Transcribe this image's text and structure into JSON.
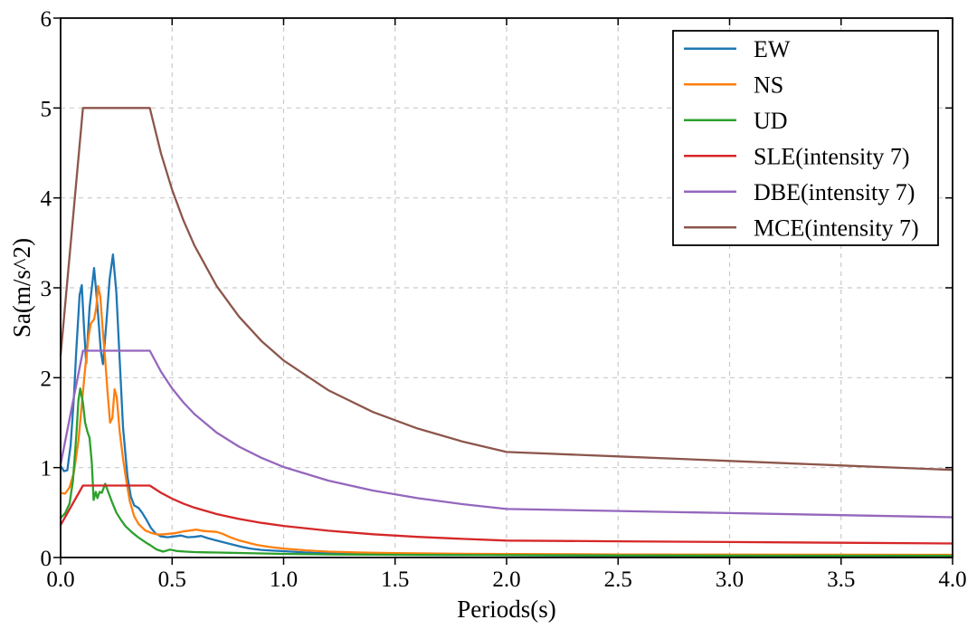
{
  "chart_data": {
    "type": "line",
    "title": "",
    "xlabel": "Periods(s)",
    "ylabel": "Sa(m/s^2)",
    "xlim": [
      0.0,
      4.0
    ],
    "ylim": [
      0,
      6
    ],
    "xticks": [
      0.0,
      0.5,
      1.0,
      1.5,
      2.0,
      2.5,
      3.0,
      3.5,
      4.0
    ],
    "xtick_labels": [
      "0.0",
      "0.5",
      "1.0",
      "1.5",
      "2.0",
      "2.5",
      "3.0",
      "3.5",
      "4.0"
    ],
    "yticks": [
      0,
      1,
      2,
      3,
      4,
      5,
      6
    ],
    "ytick_labels": [
      "0",
      "1",
      "2",
      "3",
      "4",
      "5",
      "6"
    ],
    "grid": true,
    "grid_style": "dashed",
    "grid_color": "#c9c9c9",
    "axes_color": "#000000",
    "background": "#ffffff",
    "legend_position": "upper right",
    "series": [
      {
        "name": "EW",
        "color": "#1f77b4",
        "points": [
          [
            0,
            1.02
          ],
          [
            0.015,
            0.96
          ],
          [
            0.03,
            0.97
          ],
          [
            0.045,
            1.25
          ],
          [
            0.06,
            1.8
          ],
          [
            0.07,
            2.3
          ],
          [
            0.085,
            2.92
          ],
          [
            0.095,
            3.03
          ],
          [
            0.105,
            2.55
          ],
          [
            0.115,
            2.16
          ],
          [
            0.13,
            2.78
          ],
          [
            0.15,
            3.22
          ],
          [
            0.165,
            2.8
          ],
          [
            0.18,
            2.3
          ],
          [
            0.19,
            2.15
          ],
          [
            0.205,
            2.6
          ],
          [
            0.22,
            3.1
          ],
          [
            0.235,
            3.37
          ],
          [
            0.25,
            2.95
          ],
          [
            0.265,
            2.2
          ],
          [
            0.28,
            1.45
          ],
          [
            0.3,
            0.9
          ],
          [
            0.315,
            0.68
          ],
          [
            0.33,
            0.58
          ],
          [
            0.35,
            0.55
          ],
          [
            0.365,
            0.5
          ],
          [
            0.385,
            0.42
          ],
          [
            0.405,
            0.33
          ],
          [
            0.425,
            0.27
          ],
          [
            0.45,
            0.235
          ],
          [
            0.48,
            0.225
          ],
          [
            0.51,
            0.235
          ],
          [
            0.54,
            0.245
          ],
          [
            0.57,
            0.225
          ],
          [
            0.6,
            0.23
          ],
          [
            0.63,
            0.24
          ],
          [
            0.66,
            0.215
          ],
          [
            0.69,
            0.195
          ],
          [
            0.73,
            0.17
          ],
          [
            0.77,
            0.145
          ],
          [
            0.81,
            0.12
          ],
          [
            0.85,
            0.1
          ],
          [
            0.9,
            0.085
          ],
          [
            0.95,
            0.077
          ],
          [
            1.0,
            0.07
          ],
          [
            1.1,
            0.055
          ],
          [
            1.2,
            0.045
          ],
          [
            1.35,
            0.037
          ],
          [
            1.5,
            0.032
          ],
          [
            1.75,
            0.028
          ],
          [
            2.0,
            0.025
          ],
          [
            2.5,
            0.021
          ],
          [
            3.0,
            0.018
          ],
          [
            3.5,
            0.016
          ],
          [
            4.0,
            0.015
          ]
        ]
      },
      {
        "name": "NS",
        "color": "#ff7f0e",
        "points": [
          [
            0,
            0.72
          ],
          [
            0.02,
            0.71
          ],
          [
            0.04,
            0.78
          ],
          [
            0.06,
            0.95
          ],
          [
            0.08,
            1.3
          ],
          [
            0.095,
            1.7
          ],
          [
            0.11,
            2.1
          ],
          [
            0.125,
            2.45
          ],
          [
            0.135,
            2.6
          ],
          [
            0.15,
            2.65
          ],
          [
            0.16,
            2.78
          ],
          [
            0.168,
            3.02
          ],
          [
            0.178,
            2.9
          ],
          [
            0.19,
            2.5
          ],
          [
            0.2,
            2.2
          ],
          [
            0.21,
            1.85
          ],
          [
            0.222,
            1.5
          ],
          [
            0.232,
            1.55
          ],
          [
            0.242,
            1.87
          ],
          [
            0.252,
            1.78
          ],
          [
            0.265,
            1.4
          ],
          [
            0.28,
            1.1
          ],
          [
            0.295,
            0.85
          ],
          [
            0.31,
            0.63
          ],
          [
            0.33,
            0.46
          ],
          [
            0.35,
            0.37
          ],
          [
            0.38,
            0.3
          ],
          [
            0.41,
            0.27
          ],
          [
            0.44,
            0.255
          ],
          [
            0.47,
            0.26
          ],
          [
            0.51,
            0.27
          ],
          [
            0.55,
            0.29
          ],
          [
            0.58,
            0.3
          ],
          [
            0.61,
            0.31
          ],
          [
            0.64,
            0.295
          ],
          [
            0.67,
            0.29
          ],
          [
            0.7,
            0.285
          ],
          [
            0.73,
            0.26
          ],
          [
            0.76,
            0.225
          ],
          [
            0.8,
            0.19
          ],
          [
            0.84,
            0.165
          ],
          [
            0.88,
            0.14
          ],
          [
            0.93,
            0.12
          ],
          [
            1.0,
            0.1
          ],
          [
            1.1,
            0.08
          ],
          [
            1.2,
            0.065
          ],
          [
            1.35,
            0.055
          ],
          [
            1.5,
            0.048
          ],
          [
            1.75,
            0.042
          ],
          [
            2.0,
            0.038
          ],
          [
            2.5,
            0.034
          ],
          [
            3.0,
            0.032
          ],
          [
            3.5,
            0.031
          ],
          [
            4.0,
            0.03
          ]
        ]
      },
      {
        "name": "UD",
        "color": "#2ca02c",
        "points": [
          [
            0,
            0.44
          ],
          [
            0.02,
            0.49
          ],
          [
            0.04,
            0.6
          ],
          [
            0.055,
            0.85
          ],
          [
            0.07,
            1.35
          ],
          [
            0.08,
            1.75
          ],
          [
            0.088,
            1.88
          ],
          [
            0.1,
            1.72
          ],
          [
            0.11,
            1.5
          ],
          [
            0.12,
            1.4
          ],
          [
            0.13,
            1.33
          ],
          [
            0.14,
            1.05
          ],
          [
            0.148,
            0.64
          ],
          [
            0.158,
            0.73
          ],
          [
            0.165,
            0.66
          ],
          [
            0.175,
            0.73
          ],
          [
            0.185,
            0.72
          ],
          [
            0.2,
            0.82
          ],
          [
            0.215,
            0.72
          ],
          [
            0.23,
            0.62
          ],
          [
            0.25,
            0.5
          ],
          [
            0.27,
            0.42
          ],
          [
            0.29,
            0.35
          ],
          [
            0.32,
            0.28
          ],
          [
            0.35,
            0.22
          ],
          [
            0.38,
            0.17
          ],
          [
            0.4,
            0.14
          ],
          [
            0.43,
            0.09
          ],
          [
            0.46,
            0.065
          ],
          [
            0.49,
            0.088
          ],
          [
            0.52,
            0.072
          ],
          [
            0.56,
            0.065
          ],
          [
            0.6,
            0.06
          ],
          [
            0.65,
            0.057
          ],
          [
            0.7,
            0.055
          ],
          [
            0.8,
            0.05
          ],
          [
            0.9,
            0.045
          ],
          [
            1.0,
            0.04
          ],
          [
            1.2,
            0.034
          ],
          [
            1.5,
            0.03
          ],
          [
            2.0,
            0.026
          ],
          [
            2.5,
            0.023
          ],
          [
            3.0,
            0.021
          ],
          [
            3.5,
            0.02
          ],
          [
            4.0,
            0.02
          ]
        ]
      },
      {
        "name": "SLE(intensity 7)",
        "color": "#d62728",
        "points": [
          [
            0,
            0.36
          ],
          [
            0.1,
            0.8
          ],
          [
            0.4,
            0.8
          ],
          [
            0.45,
            0.72
          ],
          [
            0.5,
            0.654
          ],
          [
            0.55,
            0.6
          ],
          [
            0.6,
            0.555
          ],
          [
            0.7,
            0.483
          ],
          [
            0.8,
            0.429
          ],
          [
            0.9,
            0.386
          ],
          [
            1.0,
            0.351
          ],
          [
            1.2,
            0.298
          ],
          [
            1.4,
            0.259
          ],
          [
            1.6,
            0.23
          ],
          [
            1.8,
            0.207
          ],
          [
            2.0,
            0.188
          ],
          [
            2.5,
            0.18
          ],
          [
            3.0,
            0.172
          ],
          [
            3.5,
            0.164
          ],
          [
            4.0,
            0.156
          ]
        ]
      },
      {
        "name": "DBE(intensity 7)",
        "color": "#9467bd",
        "points": [
          [
            0,
            1.035
          ],
          [
            0.1,
            2.3
          ],
          [
            0.4,
            2.3
          ],
          [
            0.45,
            2.069
          ],
          [
            0.5,
            1.881
          ],
          [
            0.55,
            1.727
          ],
          [
            0.6,
            1.596
          ],
          [
            0.7,
            1.389
          ],
          [
            0.8,
            1.233
          ],
          [
            0.9,
            1.109
          ],
          [
            1.0,
            1.007
          ],
          [
            1.2,
            0.856
          ],
          [
            1.4,
            0.745
          ],
          [
            1.6,
            0.66
          ],
          [
            1.8,
            0.594
          ],
          [
            2.0,
            0.54
          ],
          [
            2.5,
            0.517
          ],
          [
            3.0,
            0.494
          ],
          [
            3.5,
            0.471
          ],
          [
            4.0,
            0.448
          ]
        ]
      },
      {
        "name": "MCE(intensity 7)",
        "color": "#8c564b",
        "points": [
          [
            0,
            2.25
          ],
          [
            0.1,
            5.0
          ],
          [
            0.4,
            5.0
          ],
          [
            0.45,
            4.497
          ],
          [
            0.5,
            4.089
          ],
          [
            0.55,
            3.754
          ],
          [
            0.6,
            3.471
          ],
          [
            0.7,
            3.019
          ],
          [
            0.8,
            2.68
          ],
          [
            0.9,
            2.409
          ],
          [
            1.0,
            2.192
          ],
          [
            1.2,
            1.861
          ],
          [
            1.4,
            1.619
          ],
          [
            1.6,
            1.436
          ],
          [
            1.8,
            1.292
          ],
          [
            2.0,
            1.174
          ],
          [
            2.5,
            1.124
          ],
          [
            3.0,
            1.074
          ],
          [
            3.5,
            1.024
          ],
          [
            4.0,
            0.974
          ]
        ]
      }
    ]
  }
}
